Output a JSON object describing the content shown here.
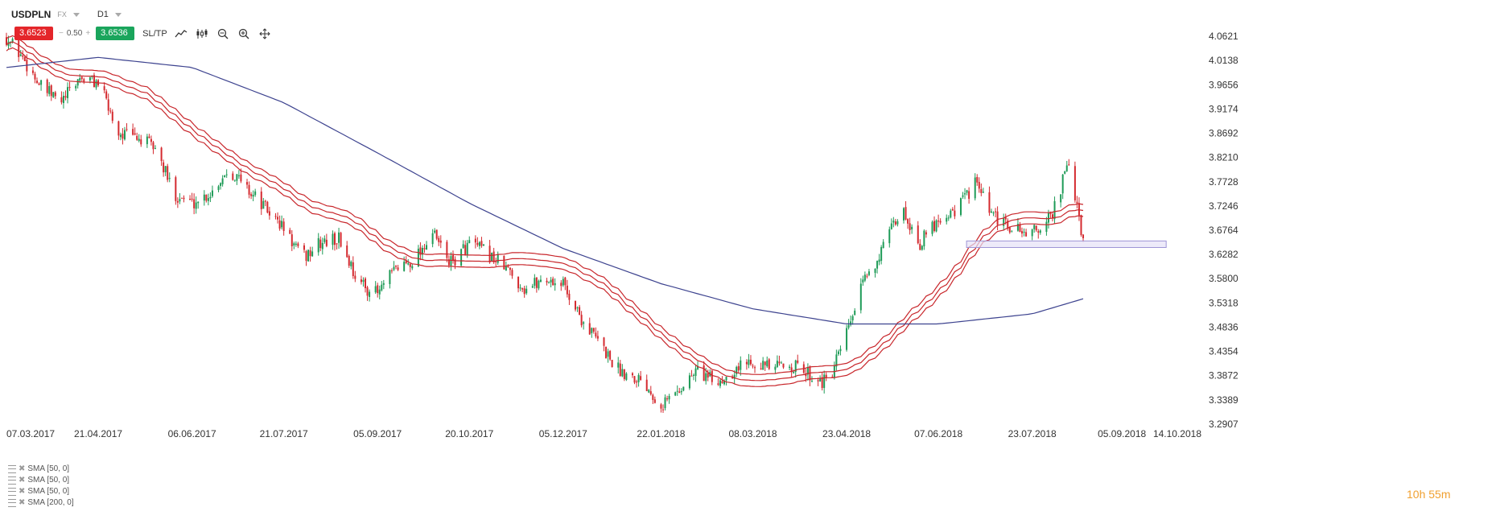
{
  "header": {
    "symbol": "USDPLN",
    "market": "FX",
    "interval": "D1"
  },
  "trade": {
    "sell_price": "3.6523",
    "minus": "−",
    "quantity": "0.50",
    "plus": "+",
    "buy_price": "3.6536",
    "sltp_label": "SL/TP"
  },
  "icons": [
    "line-chart-icon",
    "candles-icon",
    "zoom-out-icon",
    "zoom-in-icon",
    "crosshair-icon"
  ],
  "indicators": [
    {
      "label": "SMA [50, 0]"
    },
    {
      "label": "SMA [50, 0]"
    },
    {
      "label": "SMA [50, 0]"
    },
    {
      "label": "SMA [200, 0]"
    }
  ],
  "timer": {
    "hours": "10",
    "h_unit": "h",
    "minutes": "55",
    "m_unit": "m"
  },
  "colors": {
    "up_candle": "#1e9b57",
    "down_candle": "#d42a2f",
    "sma50": "#c8262b",
    "sma200": "#3d438f",
    "zone_fill": "#e6e1f7",
    "zone_stroke": "#9f95d6"
  },
  "chart_data": {
    "type": "candlestick",
    "symbol": "USDPLN",
    "y_ticks": [
      "4.0621",
      "4.0138",
      "3.9656",
      "3.9174",
      "3.8692",
      "3.8210",
      "3.7728",
      "3.7246",
      "3.6764",
      "3.6282",
      "3.5800",
      "3.5318",
      "3.4836",
      "3.4354",
      "3.3872",
      "3.3389",
      "3.2907"
    ],
    "ylim": [
      3.2907,
      4.0621
    ],
    "x_ticks": [
      "07.03.2017",
      "21.04.2017",
      "06.06.2017",
      "21.07.2017",
      "05.09.2017",
      "20.10.2017",
      "05.12.2017",
      "22.01.2018",
      "08.03.2018",
      "23.04.2018",
      "07.06.2018",
      "23.07.2018",
      "05.09.2018",
      "14.10.2018"
    ],
    "close_path": [
      [
        "07.03.2017",
        4.06
      ],
      [
        "15.03.2017",
        4.02
      ],
      [
        "24.03.2017",
        3.96
      ],
      [
        "03.04.2017",
        3.93
      ],
      [
        "12.04.2017",
        3.98
      ],
      [
        "21.04.2017",
        3.97
      ],
      [
        "01.05.2017",
        3.87
      ],
      [
        "10.05.2017",
        3.86
      ],
      [
        "19.05.2017",
        3.84
      ],
      [
        "28.05.2017",
        3.75
      ],
      [
        "06.06.2017",
        3.73
      ],
      [
        "15.06.2017",
        3.75
      ],
      [
        "24.06.2017",
        3.8
      ],
      [
        "03.07.2017",
        3.76
      ],
      [
        "12.07.2017",
        3.72
      ],
      [
        "21.07.2017",
        3.68
      ],
      [
        "30.07.2017",
        3.62
      ],
      [
        "08.08.2017",
        3.65
      ],
      [
        "17.08.2017",
        3.66
      ],
      [
        "27.08.2017",
        3.57
      ],
      [
        "05.09.2017",
        3.55
      ],
      [
        "14.09.2017",
        3.6
      ],
      [
        "23.09.2017",
        3.62
      ],
      [
        "02.10.2017",
        3.67
      ],
      [
        "11.10.2017",
        3.61
      ],
      [
        "20.10.2017",
        3.65
      ],
      [
        "29.10.2017",
        3.63
      ],
      [
        "07.11.2017",
        3.6
      ],
      [
        "16.11.2017",
        3.56
      ],
      [
        "26.11.2017",
        3.58
      ],
      [
        "05.12.2017",
        3.57
      ],
      [
        "14.12.2017",
        3.5
      ],
      [
        "23.12.2017",
        3.45
      ],
      [
        "01.01.2018",
        3.4
      ],
      [
        "13.01.2018",
        3.38
      ],
      [
        "22.01.2018",
        3.33
      ],
      [
        "31.01.2018",
        3.36
      ],
      [
        "09.02.2018",
        3.4
      ],
      [
        "18.02.2018",
        3.37
      ],
      [
        "27.02.2018",
        3.4
      ],
      [
        "08.03.2018",
        3.42
      ],
      [
        "17.03.2018",
        3.4
      ],
      [
        "26.03.2018",
        3.41
      ],
      [
        "05.04.2018",
        3.39
      ],
      [
        "14.04.2018",
        3.37
      ],
      [
        "23.04.2018",
        3.47
      ],
      [
        "02.05.2018",
        3.58
      ],
      [
        "11.05.2018",
        3.64
      ],
      [
        "20.05.2018",
        3.72
      ],
      [
        "29.05.2018",
        3.65
      ],
      [
        "07.06.2018",
        3.7
      ],
      [
        "16.06.2018",
        3.72
      ],
      [
        "25.06.2018",
        3.77
      ],
      [
        "04.07.2018",
        3.7
      ],
      [
        "13.07.2018",
        3.68
      ],
      [
        "23.07.2018",
        3.67
      ],
      [
        "01.08.2018",
        3.7
      ],
      [
        "10.08.2018",
        3.81
      ],
      [
        "17.08.2018",
        3.65
      ]
    ],
    "sma200_path": [
      [
        "07.03.2017",
        4.0
      ],
      [
        "21.04.2017",
        4.02
      ],
      [
        "06.06.2017",
        4.0
      ],
      [
        "21.07.2017",
        3.93
      ],
      [
        "05.09.2017",
        3.83
      ],
      [
        "20.10.2017",
        3.73
      ],
      [
        "05.12.2017",
        3.64
      ],
      [
        "22.01.2018",
        3.57
      ],
      [
        "08.03.2018",
        3.52
      ],
      [
        "23.04.2018",
        3.49
      ],
      [
        "07.06.2018",
        3.49
      ],
      [
        "23.07.2018",
        3.51
      ],
      [
        "17.08.2018",
        3.54
      ]
    ],
    "sma50_band_offset": 0.012,
    "support_zone": {
      "from": "07.06.2018",
      "to": "05.09.2018",
      "low": 3.642,
      "high": 3.655
    }
  }
}
